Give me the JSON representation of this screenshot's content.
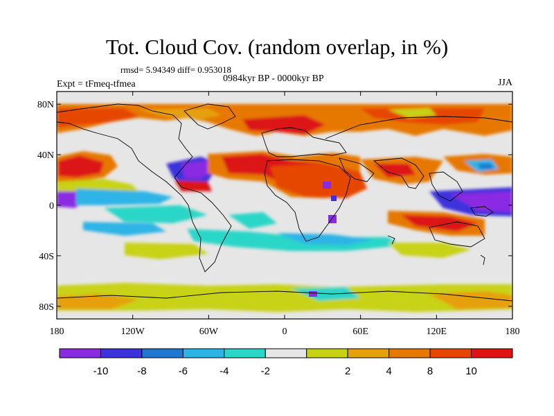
{
  "header": {
    "title": "Tot. Cloud Cov. (random overlap, in %)",
    "stats": "rmsd= 5.94349 diff= 0.953018",
    "period": "0984kyr BP - 0000kyr BP",
    "experiment": "Expt = tFmeq-tfmea",
    "season": "JJA"
  },
  "map": {
    "projection": "cylindrical equidistant",
    "lon_range": [
      -180,
      180
    ],
    "lat_range": [
      -90,
      90
    ],
    "background_color": "#e6e6e6",
    "x_ticks": [
      {
        "value": -180,
        "label": "180"
      },
      {
        "value": -120,
        "label": "120W"
      },
      {
        "value": -60,
        "label": "60W"
      },
      {
        "value": 0,
        "label": "0"
      },
      {
        "value": 60,
        "label": "60E"
      },
      {
        "value": 120,
        "label": "120E"
      },
      {
        "value": 180,
        "label": "180"
      }
    ],
    "y_ticks": [
      {
        "value": 80,
        "label": "80N"
      },
      {
        "value": 40,
        "label": "40N"
      },
      {
        "value": 0,
        "label": "0"
      },
      {
        "value": -40,
        "label": "40S"
      },
      {
        "value": -80,
        "label": "80S"
      }
    ]
  },
  "colorbar": {
    "colors": [
      "#8a2be2",
      "#3c32dc",
      "#1e78d2",
      "#2db4e6",
      "#2ad6c8",
      "#e6e6e6",
      "#c8d214",
      "#e6a00a",
      "#e67800",
      "#e64600",
      "#dc1414"
    ],
    "labels": [
      "-10",
      "-8",
      "-6",
      "-4",
      "-2",
      "2",
      "4",
      "8",
      "10"
    ]
  }
}
